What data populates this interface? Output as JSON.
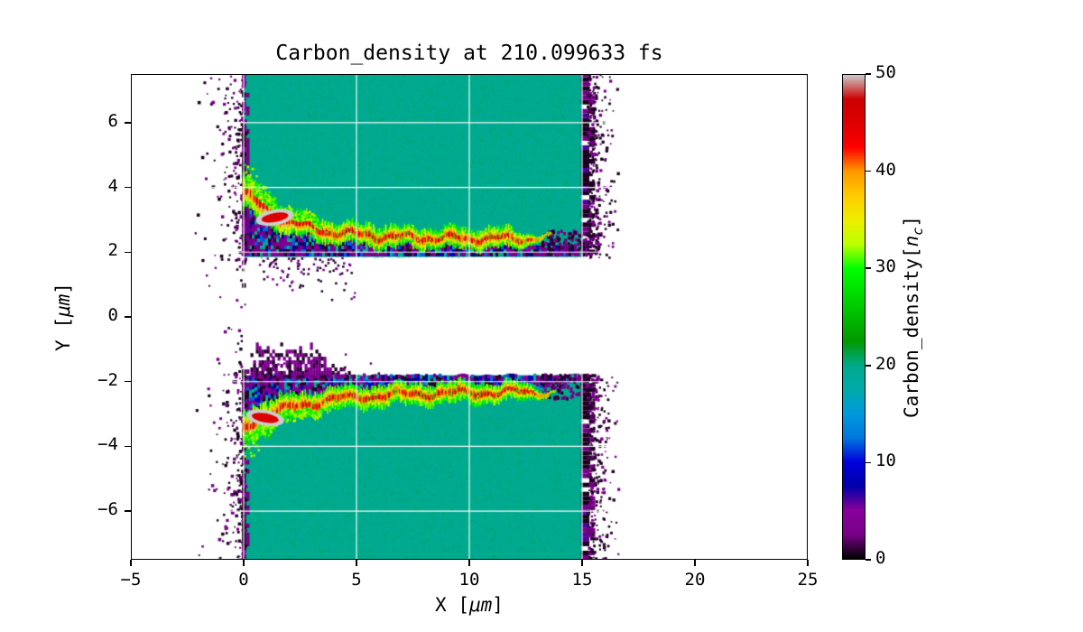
{
  "figure": {
    "background": "#ffffff"
  },
  "chart_data": {
    "type": "heatmap",
    "title": "Carbon_density at 210.099633 fs",
    "time_fs": 210.099633,
    "xlabel": {
      "prefix": "X [",
      "math": "μm",
      "suffix": "]"
    },
    "ylabel": {
      "prefix": "Y [",
      "math": "μm",
      "suffix": "]"
    },
    "xlim": [
      -5,
      25
    ],
    "ylim": [
      -7.5,
      7.5
    ],
    "x_ticks": {
      "values": [
        -5,
        0,
        5,
        10,
        15,
        20,
        25
      ],
      "labels": [
        "−5",
        "0",
        "5",
        "10",
        "15",
        "20",
        "25"
      ]
    },
    "y_ticks": {
      "values": [
        -6,
        -4,
        -2,
        0,
        2,
        4,
        6
      ],
      "labels": [
        "−6",
        "−4",
        "−2",
        "0",
        "2",
        "4",
        "6"
      ]
    },
    "grid": {
      "show": true,
      "color": "#ffffff"
    },
    "colorbar": {
      "label": {
        "prefix": "Carbon_density[",
        "math": "n",
        "sub": "c",
        "suffix": "]"
      },
      "ticks": {
        "values": [
          0,
          10,
          20,
          30,
          40,
          50
        ],
        "labels": [
          "0",
          "10",
          "20",
          "30",
          "40",
          "50"
        ]
      },
      "vmin": 0,
      "vmax": 50,
      "colormap": "nipy_spectral",
      "stops": [
        [
          0.0,
          "#000000"
        ],
        [
          0.05,
          "#770088"
        ],
        [
          0.1,
          "#880099"
        ],
        [
          0.15,
          "#0000aa"
        ],
        [
          0.2,
          "#0000dd"
        ],
        [
          0.25,
          "#0077dd"
        ],
        [
          0.3,
          "#0099dd"
        ],
        [
          0.35,
          "#00aaaa"
        ],
        [
          0.4,
          "#00aa88"
        ],
        [
          0.45,
          "#009900"
        ],
        [
          0.5,
          "#00bb00"
        ],
        [
          0.55,
          "#00dd00"
        ],
        [
          0.6,
          "#00ff00"
        ],
        [
          0.65,
          "#bbff00"
        ],
        [
          0.7,
          "#eeee00"
        ],
        [
          0.75,
          "#ffcc00"
        ],
        [
          0.8,
          "#ff9900"
        ],
        [
          0.85,
          "#ff0000"
        ],
        [
          0.9,
          "#dd0000"
        ],
        [
          0.95,
          "#cc0000"
        ],
        [
          1.0,
          "#cccccc"
        ]
      ]
    },
    "features": {
      "noise_seed": 20210,
      "plasma_slabs": [
        {
          "x_range": [
            0,
            15
          ],
          "y_range": [
            1.85,
            7.5
          ],
          "density": 19.5
        },
        {
          "x_range": [
            0,
            15
          ],
          "y_range": [
            -7.5,
            -1.8
          ],
          "density": 19.5
        }
      ],
      "channel_jets": [
        {
          "side": "upper",
          "y_start": 3.9,
          "y_flat": 2.42,
          "decay_length": 2.0,
          "x_end": 13.6,
          "peak_density": 50
        },
        {
          "side": "lower",
          "y_start": -3.4,
          "y_flat": -2.32,
          "decay_length": 2.6,
          "x_end": 13.8,
          "peak_density": 50
        }
      ],
      "edge_speckle": {
        "left_x": [
          -2.3,
          0.2
        ],
        "right_x": [
          14.9,
          16.5
        ],
        "density_range": [
          0.5,
          3
        ]
      }
    }
  }
}
